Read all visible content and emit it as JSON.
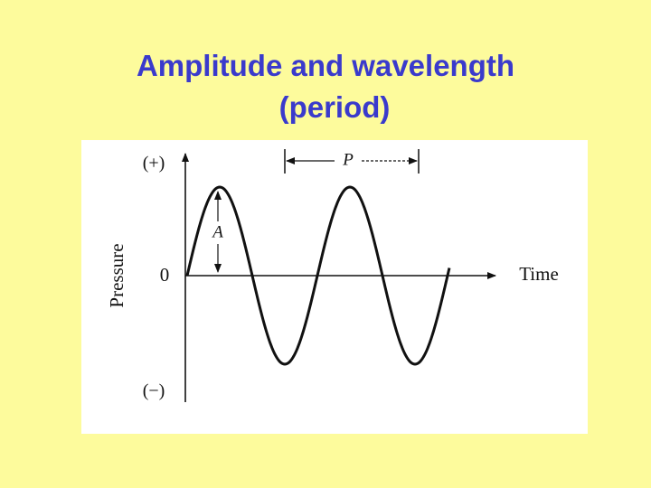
{
  "title": {
    "lines": [
      "Amplitude and wavelength",
      "(period)"
    ]
  },
  "diagram": {
    "y_axis_label": "Pressure",
    "x_axis_label": "Time",
    "plus_label": "(+)",
    "minus_label": "(−)",
    "zero_label": "0",
    "period_label": "P",
    "amplitude_label": "A"
  }
}
